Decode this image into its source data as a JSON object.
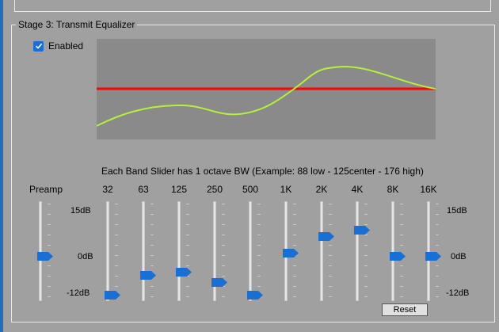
{
  "group_title": "Stage 3: Transmit Equalizer",
  "enabled": {
    "label": "Enabled",
    "checked": true
  },
  "bandwidth_note": "Each Band Slider has 1 octave BW (Example: 88 low - 125center  - 176 high)",
  "preamp_label": "Preamp",
  "left_scale": {
    "top": "15dB",
    "mid": "0dB",
    "bottom": "-12dB"
  },
  "right_scale": {
    "top": "15dB",
    "mid": "0dB",
    "bottom": "-12dB"
  },
  "range_db": [
    -12,
    15
  ],
  "sliders": [
    {
      "id": "preamp",
      "label": "",
      "db": 0
    },
    {
      "id": "band-32",
      "label": "32",
      "db": -12
    },
    {
      "id": "band-63",
      "label": "63",
      "db": -6
    },
    {
      "id": "band-125",
      "label": "125",
      "db": -5
    },
    {
      "id": "band-250",
      "label": "250",
      "db": -8
    },
    {
      "id": "band-500",
      "label": "500",
      "db": -12
    },
    {
      "id": "band-1k",
      "label": "1K",
      "db": 1
    },
    {
      "id": "band-2k",
      "label": "2K",
      "db": 6
    },
    {
      "id": "band-4k",
      "label": "4K",
      "db": 8
    },
    {
      "id": "band-8k",
      "label": "8K",
      "db": 0
    },
    {
      "id": "band-16k",
      "label": "16K",
      "db": 0
    }
  ],
  "reset_label": "Reset",
  "colors": {
    "accent": "#1f6fbf",
    "thumb": "#1a6fd4",
    "curve_bg": "#8a8a8a",
    "zero_line": "#ff0000",
    "eq_curve": "#b5f03a"
  }
}
